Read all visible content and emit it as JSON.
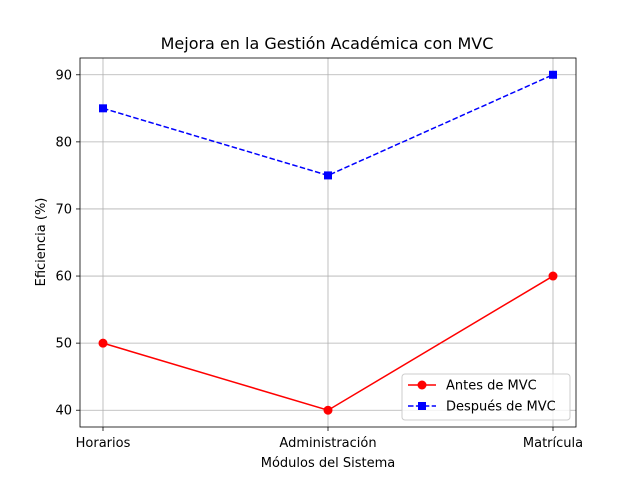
{
  "chart_data": {
    "type": "line",
    "title": "Mejora en la Gestión Académica con MVC",
    "xlabel": "Módulos del Sistema",
    "ylabel": "Eficiencia (%)",
    "categories": [
      "Horarios",
      "Administración",
      "Matrícula"
    ],
    "ylim": [
      37.5,
      92.5
    ],
    "yticks": [
      40,
      50,
      60,
      70,
      80,
      90
    ],
    "grid": true,
    "legend_position": "lower-right",
    "series": [
      {
        "name": "Antes de MVC",
        "values": [
          50,
          40,
          60
        ],
        "color": "#ff0000",
        "line_style": "solid",
        "marker": "circle"
      },
      {
        "name": "Después de MVC",
        "values": [
          85,
          75,
          90
        ],
        "color": "#0000ff",
        "line_style": "dashed",
        "marker": "square"
      }
    ]
  }
}
